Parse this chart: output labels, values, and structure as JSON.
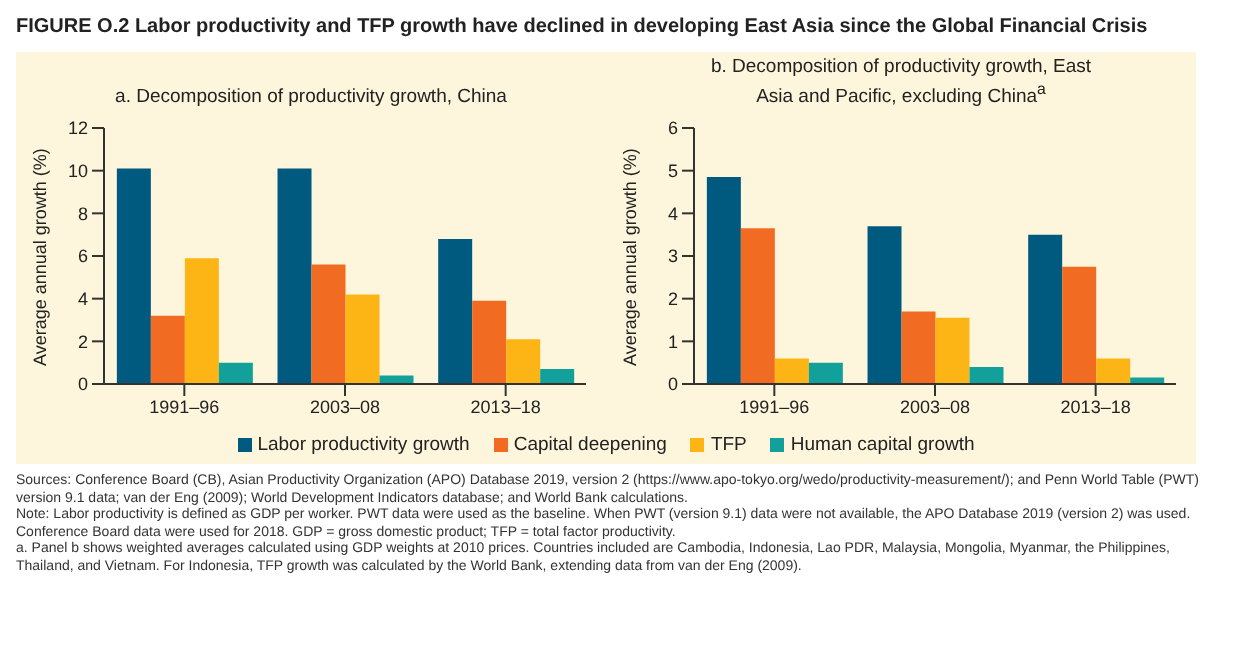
{
  "chart_data": [
    {
      "type": "bar",
      "title": "FIGURE O.2   Labor productivity and TFP growth have declined in developing East Asia since the Global Financial Crisis",
      "subtitle": "a. Decomposition of productivity growth, China",
      "ylabel": "Average annual growth (%)",
      "categories": [
        "1991–96",
        "2003–08",
        "2013–18"
      ],
      "ylim": [
        0,
        12
      ],
      "yticks": [
        0,
        2,
        4,
        6,
        8,
        10,
        12
      ],
      "legend": "bottom",
      "series": [
        {
          "name": "Labor productivity growth",
          "color": "#005a80",
          "values": [
            10.1,
            10.1,
            6.8
          ]
        },
        {
          "name": "Capital deepening",
          "color": "#f26b22",
          "values": [
            3.2,
            5.6,
            3.9
          ]
        },
        {
          "name": "TFP",
          "color": "#fdb515",
          "values": [
            5.9,
            4.2,
            2.1
          ]
        },
        {
          "name": "Human capital growth",
          "color": "#12a19a",
          "values": [
            1.0,
            0.4,
            0.7
          ]
        }
      ]
    },
    {
      "type": "bar",
      "subtitle": "b. Decomposition of productivity growth, East Asia and Pacific, excluding China$^{a}$",
      "ylabel": "Average annual growth (%)",
      "categories": [
        "1991–96",
        "2003–08",
        "2013–18"
      ],
      "ylim": [
        0,
        6
      ],
      "yticks": [
        0,
        1,
        2,
        3,
        4,
        5,
        6
      ],
      "series": [
        {
          "color": "#005a80",
          "values": [
            4.85,
            3.7,
            3.5
          ]
        },
        {
          "color": "#f26b22",
          "values": [
            3.65,
            1.7,
            2.75
          ]
        },
        {
          "color": "#fdb515",
          "values": [
            0.6,
            1.55,
            0.6
          ]
        },
        {
          "color": "#12a19a",
          "values": [
            0.5,
            0.4,
            0.15
          ]
        }
      ],
      "annotations": [
        "Sources: Conference Board (CB), Asian Productivity Organization (APO) Database 2019, version 2 (https://www.apo-tokyo.org/wedo/productivity-measurement/); and Penn World Table (PWT) version 9.1 data; van der Eng (2009); World Development Indicators database; and World Bank calculations.",
        "Note: Labor productivity is defined as GDP per worker. PWT data were used as the baseline. When PWT (version 9.1) data were not available, the APO Database 2019 (version 2) was used. Conference Board data were used for 2018. GDP = gross domestic product; TFP = total factor productivity.",
        "a. Panel b shows weighted averages calculated using GDP weights at 2010 prices. Countries included are Cambodia, Indonesia, Lao PDR, Malaysia, Mongolia, Myanmar, the Philippines, Thailand, and Vietnam. For Indonesia, TFP growth was calculated by the World Bank, extending data from van der Eng (2009)."
      ]
    }
  ]
}
